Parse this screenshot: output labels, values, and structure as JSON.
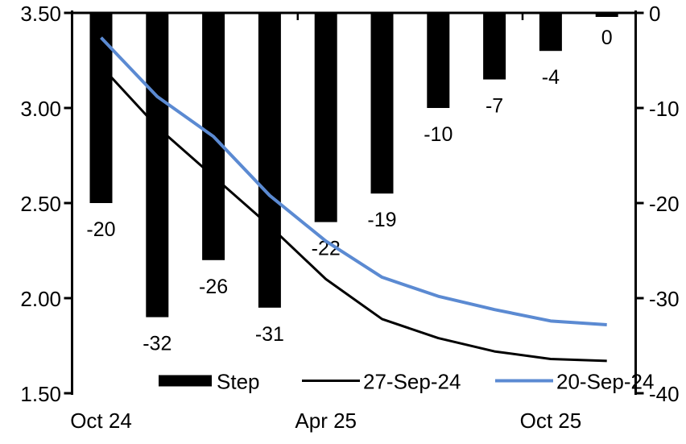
{
  "chart_data": {
    "type": "bar",
    "subtype": "combo-bar-line",
    "bars": {
      "name": "Step",
      "color": "#000000",
      "axis": "right",
      "values": [
        -20,
        -32,
        -26,
        -31,
        -22,
        -19,
        -10,
        -7,
        -4,
        0
      ],
      "labels": [
        "-20",
        "-32",
        "-26",
        "-31",
        "-22",
        "-19",
        "-10",
        "-7",
        "-4",
        "0"
      ]
    },
    "series": [
      {
        "name": "27-Sep-24",
        "type": "line",
        "color": "#000000",
        "width": 3,
        "axis": "left",
        "values": [
          3.22,
          2.9,
          2.64,
          2.38,
          2.1,
          1.89,
          1.79,
          1.72,
          1.68,
          1.67
        ]
      },
      {
        "name": "20-Sep-24",
        "type": "line",
        "color": "#5B8AD2",
        "width": 4,
        "axis": "left",
        "values": [
          3.37,
          3.06,
          2.85,
          2.54,
          2.3,
          2.11,
          2.01,
          1.94,
          1.88,
          1.86
        ]
      }
    ],
    "left_axis": {
      "ticks": [
        "3.50",
        "3.00",
        "2.50",
        "2.00",
        "1.50"
      ],
      "range": [
        1.5,
        3.5
      ]
    },
    "right_axis": {
      "ticks": [
        "0",
        "-10",
        "-20",
        "-30",
        "-40"
      ],
      "range": [
        -40,
        0
      ]
    },
    "x_tick_labels": [
      {
        "label": "Oct 24",
        "bar_index": 0
      },
      {
        "label": "Apr 25",
        "bar_index": 4
      },
      {
        "label": "Oct 25",
        "bar_index": 8
      }
    ],
    "legend": [
      {
        "label": "Step",
        "swatch": "bar",
        "color": "#000000"
      },
      {
        "label": "27-Sep-24",
        "swatch": "line",
        "color": "#000000"
      },
      {
        "label": "20-Sep-24",
        "swatch": "line",
        "color": "#5B8AD2"
      }
    ],
    "grid": false,
    "legend_position": "bottom-inside"
  }
}
